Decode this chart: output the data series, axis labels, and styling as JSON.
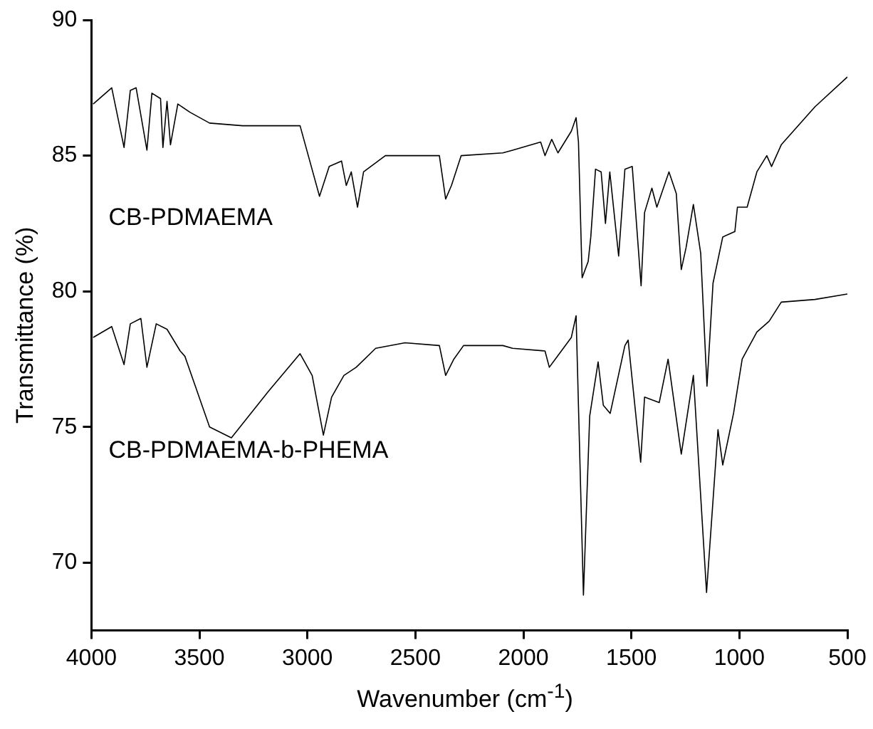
{
  "chart_data": {
    "type": "line",
    "xlabel": "Wavenumber (cm$^{-1}$)",
    "ylabel": "Transmittance (%)",
    "xlim": [
      4000,
      500
    ],
    "xticks": [
      4000,
      3500,
      3000,
      2500,
      2000,
      1500,
      1000,
      500
    ],
    "ylim": [
      67.5,
      90
    ],
    "yticks": [
      70,
      75,
      80,
      85,
      90
    ],
    "grid": false,
    "legend": false,
    "marker": "none",
    "line_style": "solid",
    "series": [
      {
        "name": "CB-PDMAEMA",
        "color": "#000000",
        "x": [
          3992,
          3906,
          3849,
          3820,
          3793,
          3743,
          3720,
          3680,
          3669,
          3650,
          3634,
          3600,
          3544,
          3453,
          3300,
          3034,
          2944,
          2899,
          2842,
          2820,
          2797,
          2768,
          2740,
          2639,
          2389,
          2360,
          2333,
          2288,
          2095,
          2050,
          1920,
          1900,
          1869,
          1840,
          1778,
          1756,
          1745,
          1728,
          1700,
          1688,
          1666,
          1640,
          1620,
          1600,
          1559,
          1530,
          1496,
          1455,
          1439,
          1405,
          1382,
          1326,
          1292,
          1269,
          1247,
          1213,
          1179,
          1150,
          1122,
          1077,
          1021,
          1009,
          964,
          919,
          873,
          851,
          806,
          650,
          500
        ],
        "values": [
          86.9,
          87.5,
          85.3,
          87.4,
          87.5,
          85.2,
          87.3,
          87.1,
          85.3,
          87.0,
          85.4,
          86.9,
          86.6,
          86.2,
          86.1,
          86.1,
          83.5,
          84.6,
          84.8,
          83.9,
          84.4,
          83.1,
          84.4,
          85.0,
          85.0,
          83.4,
          83.9,
          85.0,
          85.1,
          85.2,
          85.5,
          85.0,
          85.6,
          85.1,
          85.9,
          86.4,
          85.5,
          80.5,
          81.1,
          82.0,
          84.5,
          84.4,
          82.5,
          84.4,
          81.3,
          84.5,
          84.6,
          80.2,
          82.9,
          83.8,
          83.1,
          84.4,
          83.6,
          80.8,
          81.6,
          83.2,
          81.4,
          76.5,
          80.3,
          82.0,
          82.2,
          83.1,
          83.1,
          84.4,
          85.0,
          84.6,
          85.4,
          86.8,
          87.9
        ]
      },
      {
        "name": "CB-PDMAEMA-b-PHEMA",
        "color": "#000000",
        "x": [
          3992,
          3906,
          3849,
          3820,
          3771,
          3743,
          3700,
          3650,
          3589,
          3567,
          3453,
          3352,
          3182,
          3034,
          2978,
          2926,
          2888,
          2831,
          2774,
          2684,
          2548,
          2389,
          2360,
          2322,
          2277,
          2095,
          2050,
          1900,
          1880,
          1778,
          1756,
          1722,
          1693,
          1654,
          1630,
          1598,
          1530,
          1515,
          1457,
          1439,
          1371,
          1330,
          1269,
          1213,
          1152,
          1099,
          1077,
          1027,
          987,
          919,
          862,
          806,
          650,
          500
        ],
        "values": [
          78.3,
          78.7,
          77.3,
          78.8,
          79.0,
          77.2,
          78.8,
          78.6,
          77.8,
          77.6,
          75.0,
          74.6,
          76.3,
          77.7,
          76.9,
          74.7,
          76.1,
          76.9,
          77.2,
          77.9,
          78.1,
          78.0,
          76.9,
          77.5,
          78.0,
          78.0,
          77.9,
          77.8,
          77.2,
          78.3,
          79.1,
          68.8,
          75.4,
          77.4,
          75.8,
          75.5,
          78.0,
          78.2,
          73.7,
          76.1,
          75.9,
          77.5,
          74.0,
          76.9,
          68.9,
          74.9,
          73.6,
          75.5,
          77.5,
          78.5,
          78.9,
          79.6,
          79.7,
          79.9
        ]
      }
    ]
  }
}
